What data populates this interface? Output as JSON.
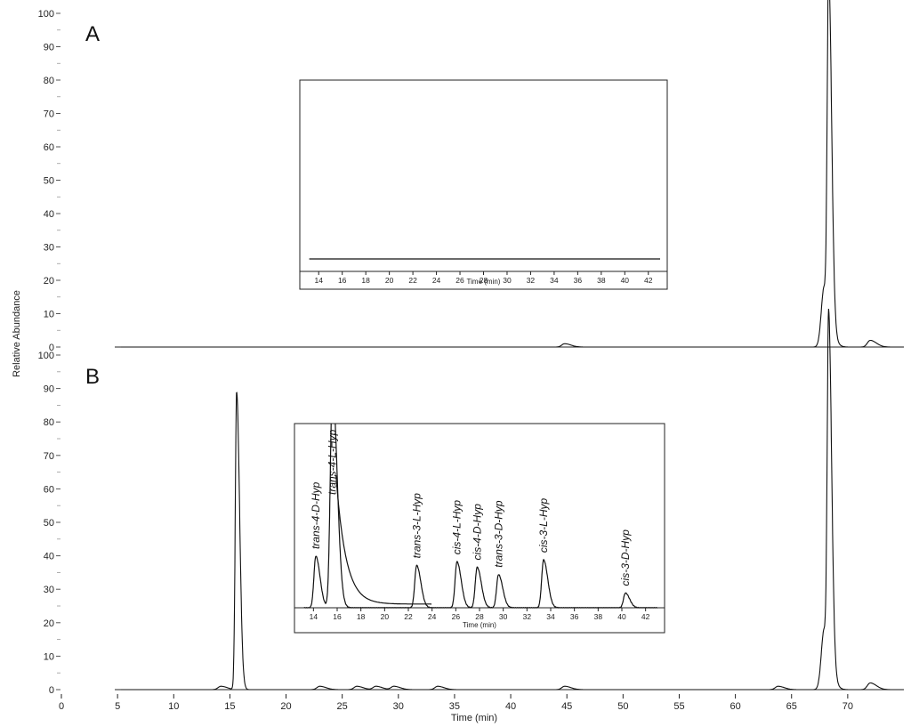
{
  "chart_data": [
    {
      "panel": "A",
      "type": "line",
      "xlabel": "Time (min)",
      "ylabel": "Relative Abundance",
      "xlim": [
        0,
        75
      ],
      "ylim": [
        0,
        100
      ],
      "x_ticks": [
        0,
        5,
        10,
        15,
        20,
        25,
        30,
        35,
        40,
        45,
        50,
        55,
        60,
        65,
        70
      ],
      "y_ticks": [
        0,
        10,
        20,
        30,
        40,
        50,
        60,
        70,
        80,
        90,
        100
      ],
      "peaks": [
        {
          "x": 44.8,
          "y": 1
        },
        {
          "x": 67.9,
          "y": 18
        },
        {
          "x": 68.3,
          "y": 100
        },
        {
          "x": 72.0,
          "y": 2
        }
      ],
      "inset": {
        "xlabel": "Time (min)",
        "xlim": [
          13,
          43
        ],
        "x_ticks": [
          14,
          16,
          18,
          20,
          22,
          24,
          26,
          28,
          30,
          32,
          34,
          36,
          38,
          40,
          42
        ],
        "peaks": []
      }
    },
    {
      "panel": "B",
      "type": "line",
      "xlabel": "Time (min)",
      "ylabel": "Relative Abundance",
      "xlim": [
        0,
        75
      ],
      "ylim": [
        0,
        100
      ],
      "x_ticks": [
        0,
        5,
        10,
        15,
        20,
        25,
        30,
        35,
        40,
        45,
        50,
        55,
        60,
        65,
        70
      ],
      "y_ticks": [
        0,
        10,
        20,
        30,
        40,
        50,
        60,
        70,
        80,
        90,
        100
      ],
      "peaks": [
        {
          "x": 14.2,
          "y": 1
        },
        {
          "x": 15.6,
          "y": 89
        },
        {
          "x": 23.0,
          "y": 1
        },
        {
          "x": 26.3,
          "y": 1
        },
        {
          "x": 28.0,
          "y": 1
        },
        {
          "x": 29.6,
          "y": 1
        },
        {
          "x": 33.5,
          "y": 1
        },
        {
          "x": 44.8,
          "y": 1
        },
        {
          "x": 63.8,
          "y": 1
        },
        {
          "x": 67.9,
          "y": 18
        },
        {
          "x": 68.3,
          "y": 100
        },
        {
          "x": 72.0,
          "y": 2
        }
      ],
      "inset": {
        "xlabel": "Time (min)",
        "xlim": [
          13,
          43
        ],
        "x_ticks": [
          14,
          16,
          18,
          20,
          22,
          24,
          26,
          28,
          30,
          32,
          34,
          36,
          38,
          40,
          42
        ],
        "peaks": [
          {
            "x": 14.2,
            "y": 28,
            "label": "trans-4-D-Hyp"
          },
          {
            "x": 15.6,
            "y": 120,
            "label": "trans-4-L-Hyp"
          },
          {
            "x": 22.7,
            "y": 23,
            "label": "trans-3-L-Hyp"
          },
          {
            "x": 26.1,
            "y": 25,
            "label": "cis-4-L-Hyp"
          },
          {
            "x": 27.8,
            "y": 22,
            "label": "cis-4-D-Hyp"
          },
          {
            "x": 29.6,
            "y": 18,
            "label": "trans-3-D-Hyp"
          },
          {
            "x": 33.4,
            "y": 26,
            "label": "cis-3-L-Hyp"
          },
          {
            "x": 40.3,
            "y": 8,
            "label": "cis-3-D-Hyp"
          }
        ]
      }
    }
  ]
}
